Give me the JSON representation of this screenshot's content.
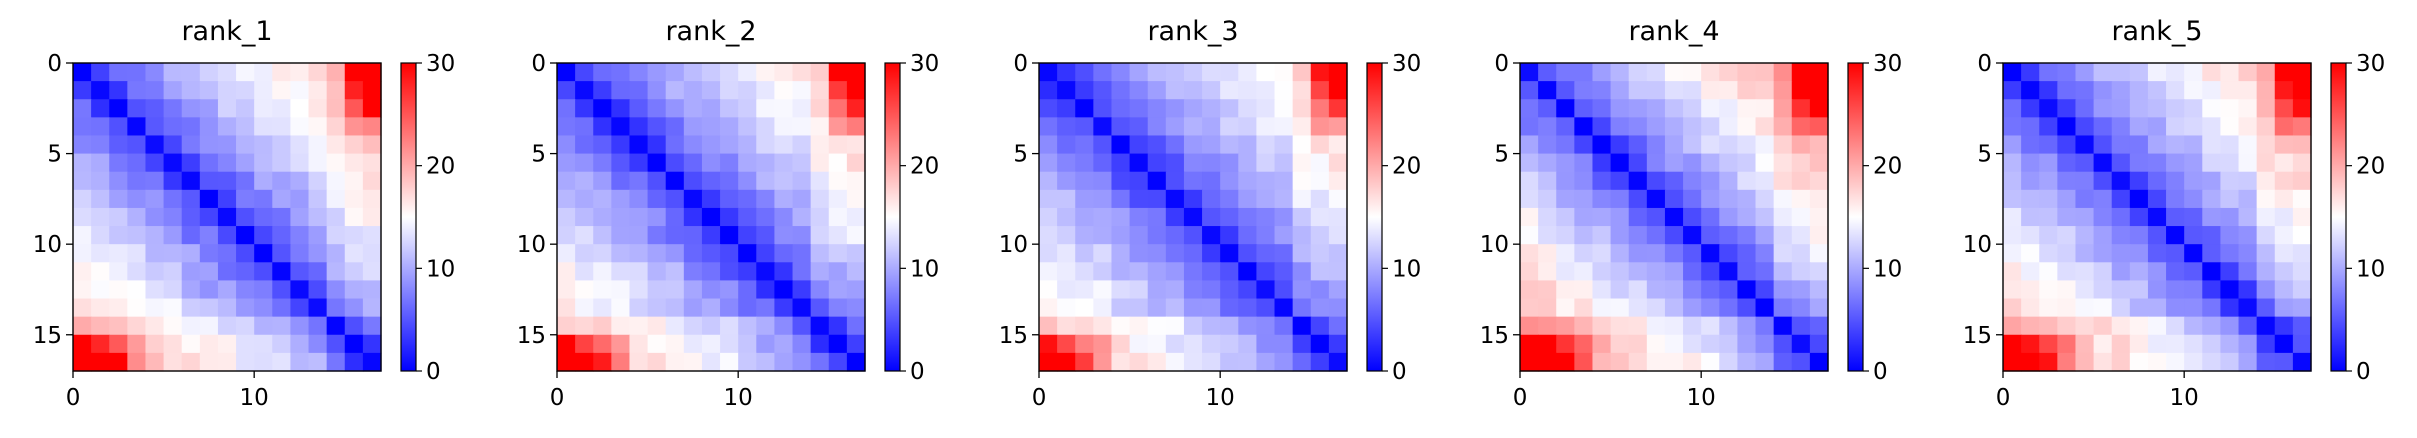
{
  "chart_data": {
    "type": "heatmap",
    "colormap": "bwr",
    "colors": {
      "low": "#0000ff",
      "mid": "#ffffff",
      "high": "#ff0000"
    },
    "vmin": 0,
    "vmax": 30,
    "colorbar_ticks": [
      "0",
      "10",
      "20",
      "30"
    ],
    "grid_size": 17,
    "x_ticks": [
      0,
      10
    ],
    "y_ticks": [
      0,
      5,
      10,
      15
    ],
    "grid": false,
    "note": "Distance matrices; values near 0 on the diagonal, rising toward the top-right/bottom-left corners",
    "panels": [
      {
        "title": "rank_1",
        "scale": 1.0,
        "seed": 11
      },
      {
        "title": "rank_2",
        "scale": 0.95,
        "seed": 23
      },
      {
        "title": "rank_3",
        "scale": 0.93,
        "seed": 37
      },
      {
        "title": "rank_4",
        "scale": 1.07,
        "seed": 41
      },
      {
        "title": "rank_5",
        "scale": 1.02,
        "seed": 53
      }
    ]
  }
}
